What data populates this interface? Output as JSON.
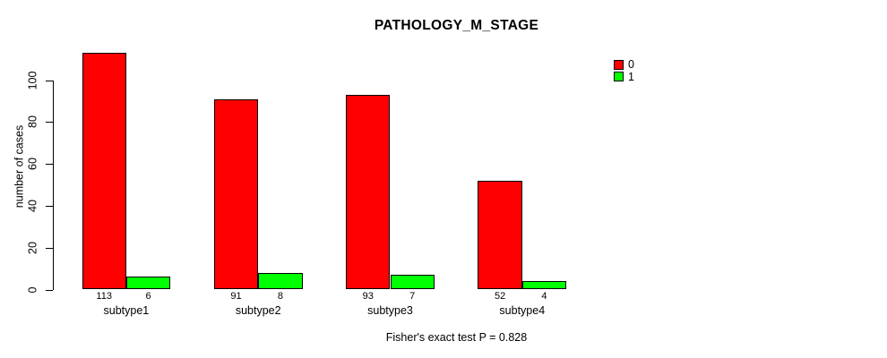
{
  "title": "PATHOLOGY_M_STAGE",
  "footer": "Fisher's exact test P = 0.828",
  "legend": [
    {
      "label": "0",
      "color": "#FF0000"
    },
    {
      "label": "1",
      "color": "#00FF00"
    }
  ],
  "colors": {
    "series0": "#FF0000",
    "series1": "#00FF00",
    "axis": "#000000",
    "background": "#FFFFFF"
  },
  "chart_data": {
    "type": "bar",
    "title": "PATHOLOGY_M_STAGE",
    "categories": [
      "subtype1",
      "subtype2",
      "subtype3",
      "subtype4"
    ],
    "series": [
      {
        "name": "0",
        "color": "#FF0000",
        "values": [
          113,
          91,
          93,
          52
        ]
      },
      {
        "name": "1",
        "color": "#00FF00",
        "values": [
          6,
          8,
          7,
          4
        ]
      }
    ],
    "bar_value_labels": [
      [
        113,
        6
      ],
      [
        91,
        8
      ],
      [
        93,
        7
      ],
      [
        52,
        4
      ]
    ],
    "xlabel": "",
    "ylabel": "number of cases",
    "ylim": [
      0,
      100
    ],
    "yticks": [
      0,
      20,
      40,
      60,
      80,
      100
    ],
    "grid": false,
    "legend_position": "top-right-inside",
    "annotation": "Fisher's exact test P = 0.828"
  }
}
